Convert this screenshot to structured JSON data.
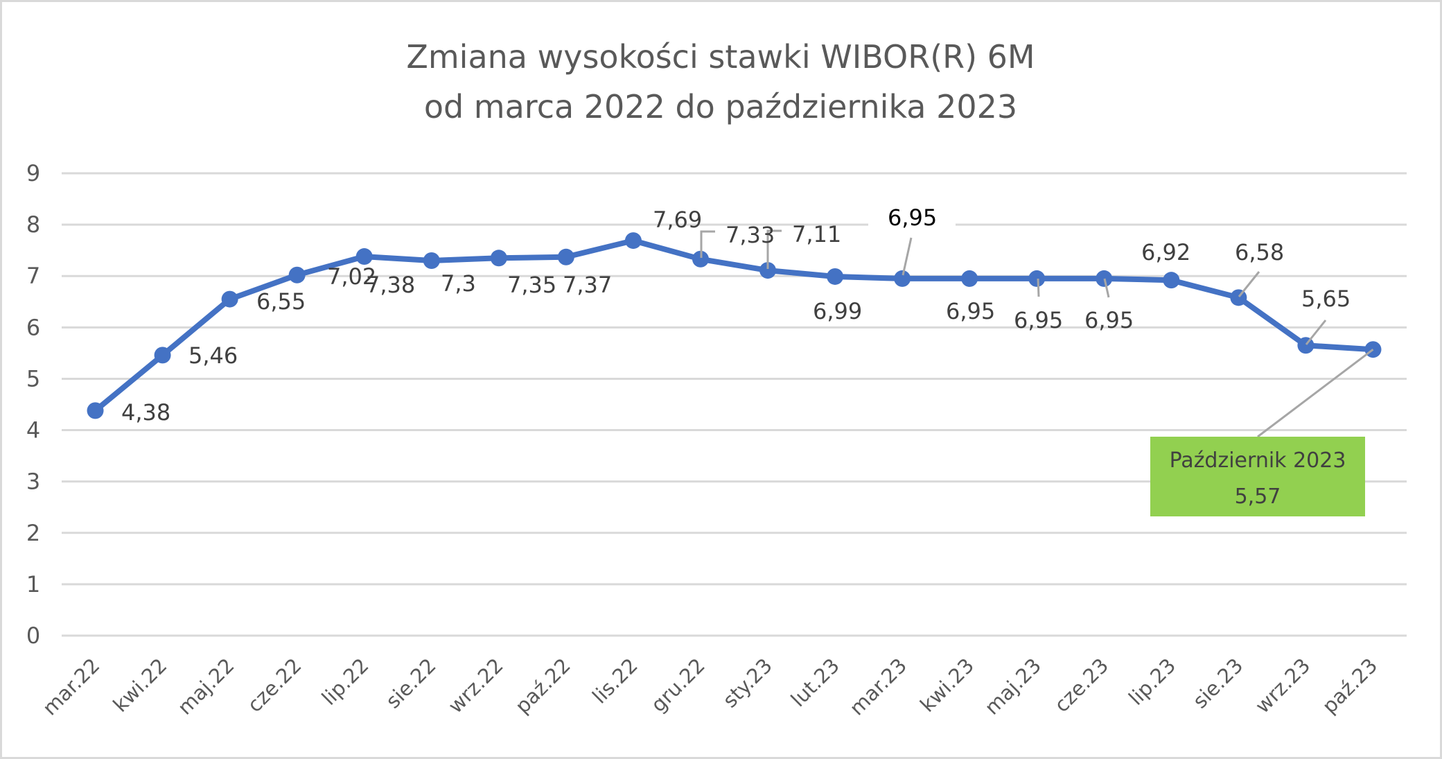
{
  "chart_data": {
    "type": "line",
    "title": "Zmiana wysokości stawki WIBOR(R) 6M od marca 2022 do października 2023",
    "title_lines": [
      "Zmiana wysokości stawki WIBOR(R) 6M",
      "od marca 2022 do października 2023"
    ],
    "xlabel": "",
    "ylabel": "",
    "ylim": [
      0,
      9
    ],
    "yticks": [
      "0",
      "1",
      "2",
      "3",
      "4",
      "5",
      "6",
      "7",
      "8",
      "9"
    ],
    "grid": true,
    "legend": null,
    "categories": [
      "mar.22",
      "kwi.22",
      "maj.22",
      "cze.22",
      "lip.22",
      "sie.22",
      "wrz.22",
      "paź.22",
      "lis.22",
      "gru.22",
      "sty.23",
      "lut.23",
      "mar.23",
      "kwi.23",
      "maj.23",
      "cze.23",
      "lip.23",
      "sie.23",
      "wrz.23",
      "paź.23"
    ],
    "series": [
      {
        "name": "WIBOR 6M",
        "color": "#4472c4",
        "values": [
          4.38,
          5.46,
          6.55,
          7.02,
          7.38,
          7.3,
          7.35,
          7.37,
          7.69,
          7.33,
          7.11,
          6.99,
          6.95,
          6.95,
          6.95,
          6.95,
          6.92,
          6.58,
          5.65,
          5.57
        ]
      }
    ],
    "data_labels": [
      "4,38",
      "5,46",
      "6,55",
      "7,02",
      "7,38",
      "7,3",
      "7,35",
      "7,37",
      "7,69",
      "7,33",
      "7,11",
      "6,99",
      "6,95",
      "6,95",
      "6,95",
      "6,95",
      "6,92",
      "6,58",
      "5,65",
      "Październik 2023\n5,57"
    ],
    "annotation": {
      "line1": "Październik 2023",
      "line2": "5,57",
      "background": "#92d050",
      "target_category": "paź.23"
    }
  },
  "colors": {
    "line": "#4472c4",
    "grid": "#d9d9d9",
    "text": "#595959",
    "label": "#404040",
    "callout_bg": "#92d050",
    "leader": "#a6a6a6"
  }
}
